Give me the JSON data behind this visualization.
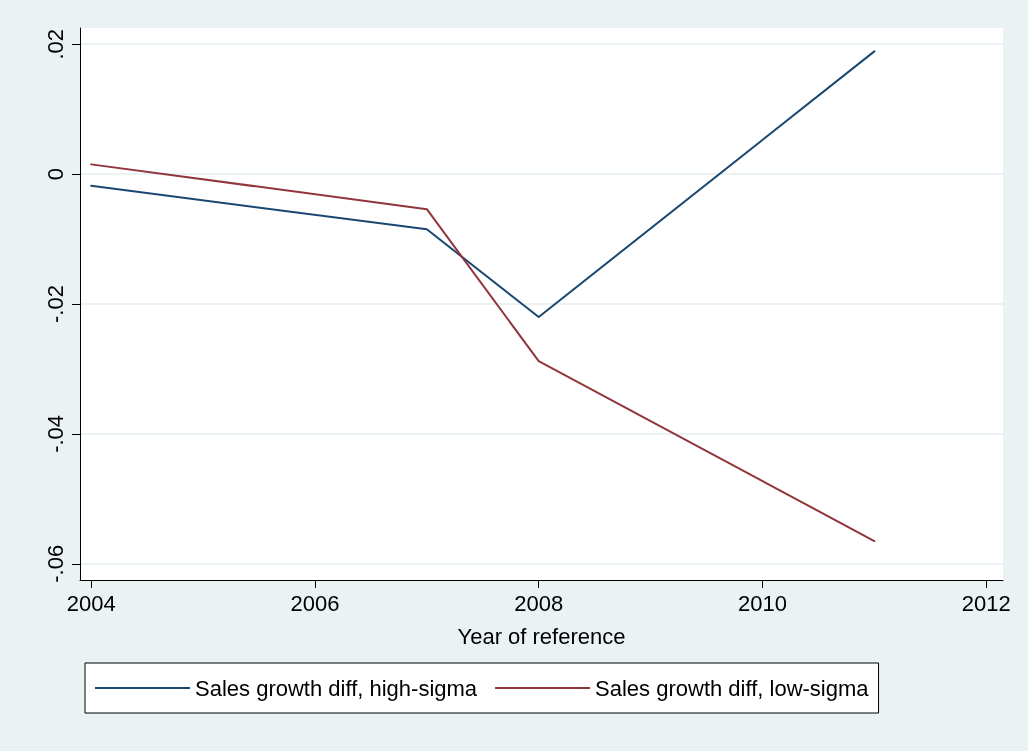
{
  "chart_data": {
    "type": "line",
    "xlabel": "Year of reference",
    "x": [
      2004,
      2007,
      2008,
      2011
    ],
    "series": [
      {
        "name": "Sales growth diff, high-sigma",
        "color": "#1a476f",
        "values": [
          -0.0018,
          -0.0085,
          -0.022,
          0.0189
        ]
      },
      {
        "name": "Sales growth diff, low-sigma",
        "color": "#90353b",
        "values": [
          0.0015,
          -0.0054,
          -0.0288,
          -0.0565
        ]
      }
    ],
    "xlim": [
      2003.9,
      2012.15
    ],
    "xticks": [
      2004,
      2006,
      2008,
      2010,
      2012
    ],
    "ylim": [
      -0.0625,
      0.0225
    ],
    "yticks": [
      {
        "value": 0.02,
        "label": ".02"
      },
      {
        "value": 0,
        "label": "0"
      },
      {
        "value": -0.02,
        "label": "-.02"
      },
      {
        "value": -0.04,
        "label": "-.04"
      },
      {
        "value": -0.06,
        "label": "-.06"
      }
    ],
    "grid": "y",
    "legend": "bottom",
    "marker": "none",
    "line_style": "solid"
  }
}
